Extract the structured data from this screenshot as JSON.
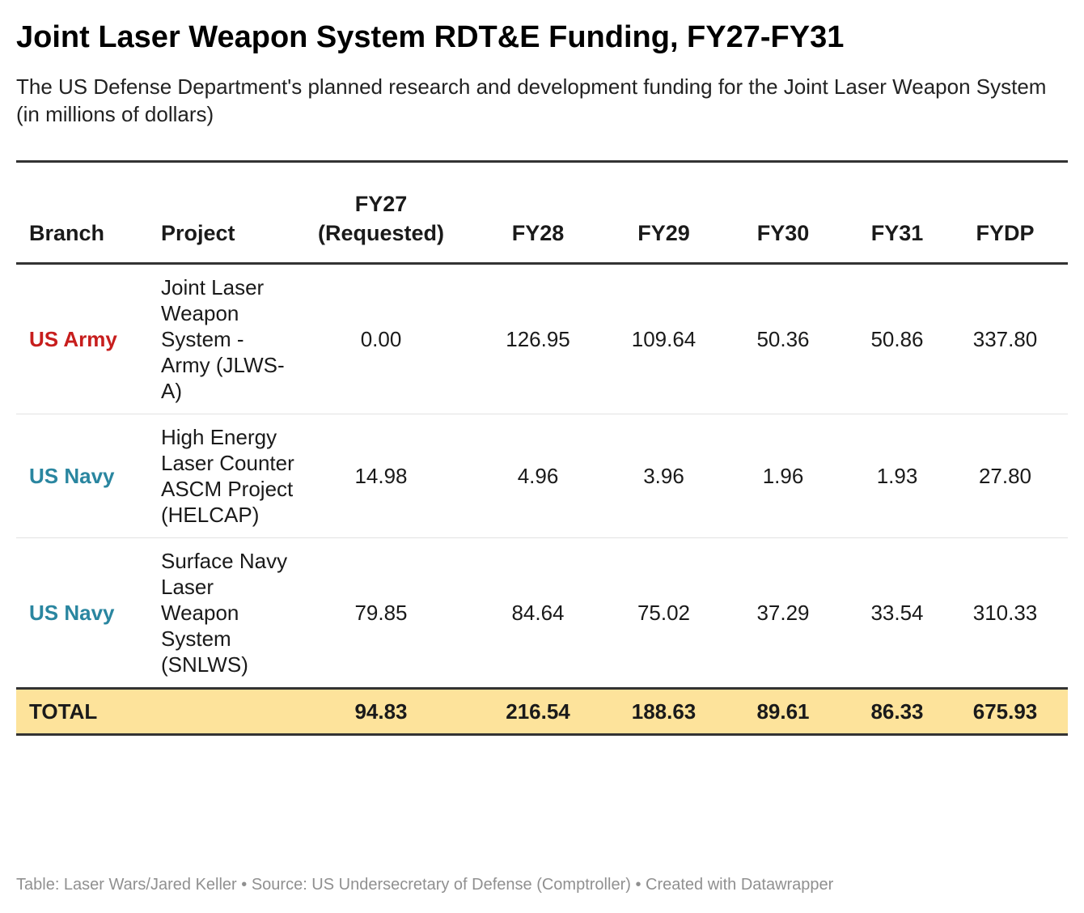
{
  "title": "Joint Laser Weapon System RDT&E Funding, FY27-FY31",
  "subtitle": "The US Defense Department's planned research and development funding for the Joint Laser Weapon System (in millions of dollars)",
  "footer": "Table: Laser Wars/Jared Keller • Source: US Undersecretary of Defense (Comptroller) • Created with Datawrapper",
  "colors": {
    "army": "#c71e1d",
    "navy": "#2a86a0",
    "total_background": "#fde39b",
    "rule": "#333333"
  },
  "chart_data": {
    "type": "table",
    "columns": [
      "Branch",
      "Project",
      "FY27 (Requested)",
      "FY28",
      "FY29",
      "FY30",
      "FY31",
      "FYDP"
    ],
    "rows": [
      {
        "branch": "US Army",
        "project": "Joint Laser Weapon System - Army (JLWS-A)",
        "values": [
          "0.00",
          "126.95",
          "109.64",
          "50.36",
          "50.86",
          "337.80"
        ]
      },
      {
        "branch": "US Navy",
        "project": "High Energy Laser Counter ASCM Project (HELCAP)",
        "values": [
          "14.98",
          "4.96",
          "3.96",
          "1.96",
          "1.93",
          "27.80"
        ]
      },
      {
        "branch": "US Navy",
        "project": "Surface Navy Laser Weapon System (SNLWS)",
        "values": [
          "79.85",
          "84.64",
          "75.02",
          "37.29",
          "33.54",
          "310.33"
        ]
      }
    ],
    "total": {
      "label": "TOTAL",
      "values": [
        "94.83",
        "216.54",
        "188.63",
        "89.61",
        "86.33",
        "675.93"
      ]
    }
  }
}
